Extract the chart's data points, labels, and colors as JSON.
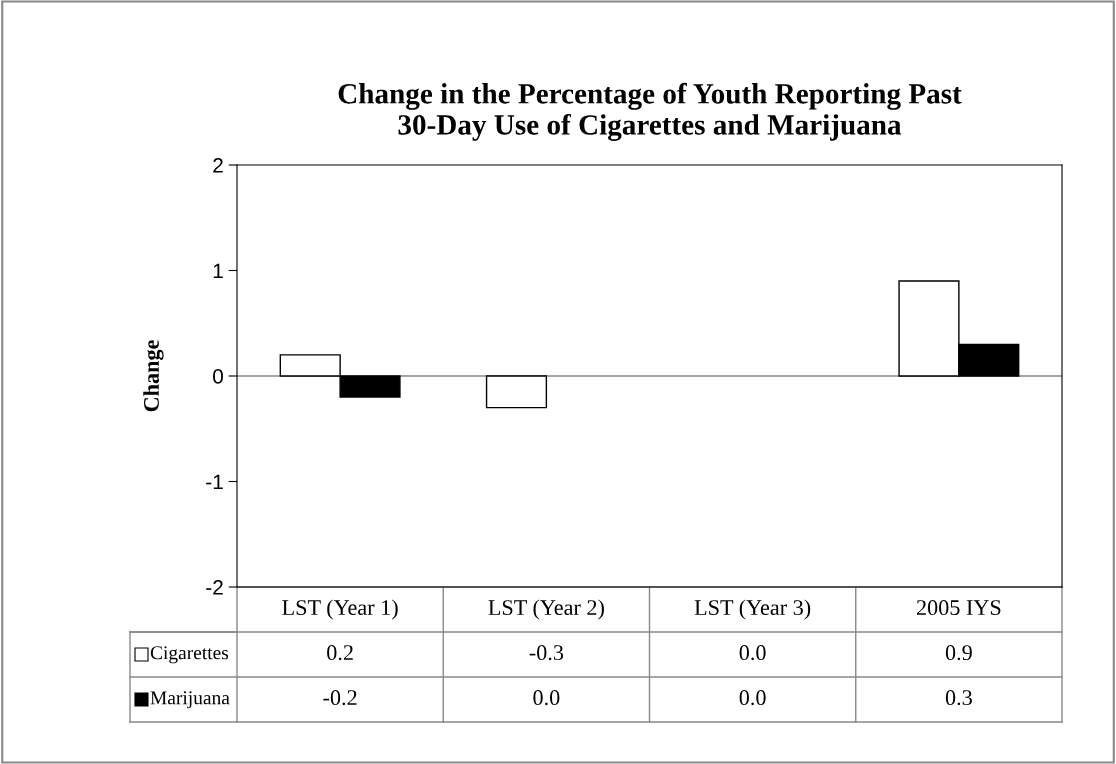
{
  "chart_data": {
    "type": "bar",
    "title": "Change in the Percentage of Youth Reporting Past\n30-Day Use of Cigarettes and Marijuana",
    "ylabel": "Change",
    "categories": [
      "LST (Year 1)",
      "LST (Year 2)",
      "LST (Year 3)",
      "2005 IYS"
    ],
    "series": [
      {
        "name": "Cigarettes",
        "color": "#ffffff",
        "values": [
          0.2,
          -0.3,
          0.0,
          0.9
        ],
        "value_labels": [
          "0.2",
          "-0.3",
          "0.0",
          "0.9"
        ]
      },
      {
        "name": "Marijuana",
        "color": "#000000",
        "values": [
          -0.2,
          0.0,
          0.0,
          0.3
        ],
        "value_labels": [
          "-0.2",
          "0.0",
          "0.0",
          "0.3"
        ]
      }
    ],
    "ylim": [
      -2,
      2
    ],
    "yticks": [
      -2,
      -1,
      0,
      1,
      2
    ],
    "grid": false,
    "legend": "bottom",
    "ref_lines": [
      {
        "axis": "y",
        "value": 0,
        "color": "#888888"
      }
    ]
  }
}
